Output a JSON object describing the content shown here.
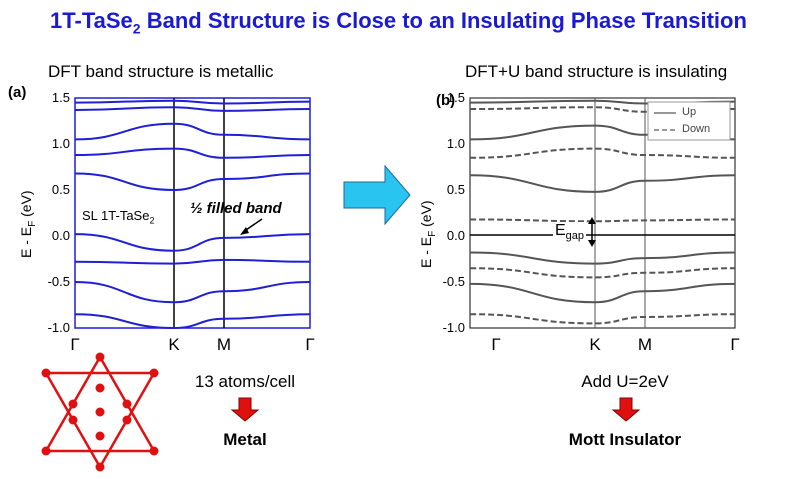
{
  "title_main": "1T-TaSe",
  "title_sub": "2",
  "title_rest": " Band Structure is Close to an Insulating Phase Transition",
  "left": {
    "subtitle": "DFT band structure is metallic",
    "tag": "(a)",
    "ylabel": "E - E",
    "ylabel_sub": "F",
    "ylabel_unit": " (eV)",
    "y_ticks": [
      "1.5",
      "1.0",
      "0.5",
      "0.0",
      "-0.5",
      "-1.0"
    ],
    "x_ticks": [
      "Γ",
      "K",
      "M",
      "Γ"
    ],
    "sample_label": "SL 1T-TaSe",
    "sample_sub": "2",
    "annotation": "½ filled band",
    "cell_text": "13 atoms/cell",
    "result": "Metal",
    "band_color": "#1f1fd6"
  },
  "right": {
    "subtitle": "DFT+U band structure is insulating",
    "tag": "(b)",
    "ylabel": "E - E",
    "ylabel_sub": "F",
    "ylabel_unit": " (eV)",
    "y_ticks": [
      "1.5",
      "1.0",
      "0.5",
      "0.0",
      "-0.5",
      "-1.0"
    ],
    "x_ticks": [
      "Γ",
      "K",
      "M",
      "Γ"
    ],
    "legend": [
      "Up",
      "Down"
    ],
    "gap_label": "E",
    "gap_sub": "gap",
    "u_text": "Add U=2eV",
    "result": "Mott Insulator",
    "band_color": "#555555"
  },
  "arrow_color": "#29c4f0",
  "down_arrow_color": "#e01010",
  "star_color": "#e01010",
  "chart_data": [
    {
      "type": "line",
      "ylim": [
        -1.0,
        1.5
      ],
      "x_ticks": [
        "Γ",
        "K",
        "M",
        "Γ"
      ],
      "ylabel": "E - EF (eV)",
      "series": [
        {
          "values": [
            1.45,
            1.47,
            1.44,
            1.46
          ]
        },
        {
          "values": [
            1.37,
            1.4,
            1.36,
            1.38
          ]
        },
        {
          "values": [
            1.05,
            1.22,
            1.1,
            1.05
          ]
        },
        {
          "values": [
            0.88,
            0.95,
            0.85,
            0.88
          ]
        },
        {
          "values": [
            0.68,
            0.5,
            0.62,
            0.68
          ]
        },
        {
          "values": [
            0.02,
            -0.16,
            -0.02,
            0.02
          ]
        },
        {
          "values": [
            -0.28,
            -0.3,
            -0.26,
            -0.28
          ]
        },
        {
          "values": [
            -0.5,
            -0.72,
            -0.6,
            -0.5
          ]
        },
        {
          "values": [
            -0.85,
            -1.0,
            -0.9,
            -0.85
          ]
        }
      ]
    },
    {
      "type": "line",
      "ylim": [
        -1.0,
        1.5
      ],
      "x_ticks": [
        "Γ",
        "K",
        "M",
        "Γ"
      ],
      "ylabel": "E - EF (eV)",
      "series": [
        {
          "name": "Up",
          "values": [
            1.45,
            1.47,
            1.44,
            1.46
          ]
        },
        {
          "name": "Up",
          "values": [
            1.05,
            1.2,
            1.1,
            1.05
          ]
        },
        {
          "name": "Up",
          "values": [
            0.66,
            0.48,
            0.6,
            0.66
          ]
        },
        {
          "name": "Up",
          "values": [
            -0.18,
            -0.3,
            -0.24,
            -0.18
          ]
        },
        {
          "name": "Up",
          "values": [
            -0.52,
            -0.72,
            -0.6,
            -0.52
          ]
        },
        {
          "name": "Down",
          "values": [
            1.38,
            1.4,
            1.35,
            1.38
          ]
        },
        {
          "name": "Down",
          "values": [
            0.85,
            0.95,
            0.88,
            0.85
          ]
        },
        {
          "name": "Down",
          "values": [
            0.18,
            0.16,
            0.17,
            0.18
          ]
        },
        {
          "name": "Down",
          "values": [
            -0.35,
            -0.45,
            -0.4,
            -0.35
          ]
        },
        {
          "name": "Down",
          "values": [
            -0.85,
            -0.95,
            -0.88,
            -0.85
          ]
        }
      ]
    }
  ]
}
